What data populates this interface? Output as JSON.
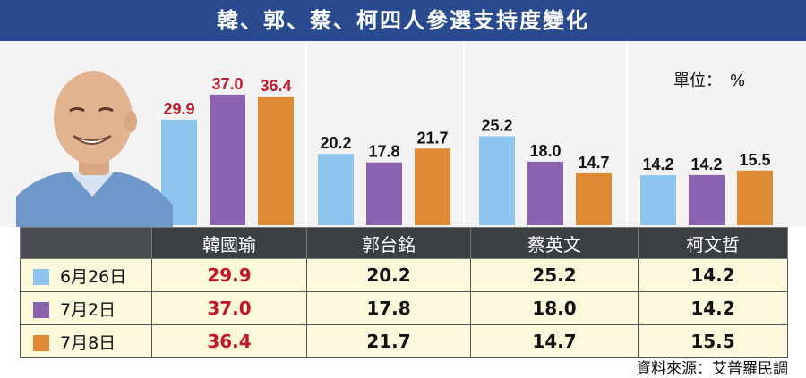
{
  "title": "韓、郭、蔡、柯四人參選支持度變化",
  "unit_label": "單位：　%",
  "source": "資料來源：艾普羅民調",
  "colors": {
    "title_bg": "#2a4a8f",
    "series": [
      "#8ec5ee",
      "#8a62b0",
      "#df8a35"
    ],
    "highlight_text": "#c0182b",
    "table_header_bg": "#3b3f44",
    "table_row_bg": "#fbf8dc"
  },
  "chart_data": {
    "type": "bar",
    "categories": [
      "韓國瑜",
      "郭台銘",
      "蔡英文",
      "柯文哲"
    ],
    "series": [
      {
        "name": "6月26日",
        "values": [
          29.9,
          20.2,
          25.2,
          14.2
        ]
      },
      {
        "name": "7月2日",
        "values": [
          37.0,
          17.8,
          18.0,
          14.2
        ]
      },
      {
        "name": "7月8日",
        "values": [
          36.4,
          21.7,
          14.7,
          15.5
        ]
      }
    ],
    "value_labels": [
      [
        "29.9",
        "20.2",
        "25.2",
        "14.2"
      ],
      [
        "37.0",
        "17.8",
        "18.0",
        "14.2"
      ],
      [
        "36.4",
        "21.7",
        "14.7",
        "15.5"
      ]
    ],
    "highlight_category": "韓國瑜",
    "ylim": [
      0,
      40
    ],
    "grid": false,
    "legend": "table-left"
  },
  "table": {
    "columns": [
      "韓國瑜",
      "郭台銘",
      "蔡英文",
      "柯文哲"
    ],
    "rows": [
      {
        "label": "6月26日",
        "values": [
          "29.9",
          "20.2",
          "25.2",
          "14.2"
        ]
      },
      {
        "label": "7月2日",
        "values": [
          "37.0",
          "17.8",
          "18.0",
          "14.2"
        ]
      },
      {
        "label": "7月8日",
        "values": [
          "36.4",
          "21.7",
          "14.7",
          "15.5"
        ]
      }
    ]
  },
  "photo": {
    "subject": "smiling man in blue shirt"
  }
}
